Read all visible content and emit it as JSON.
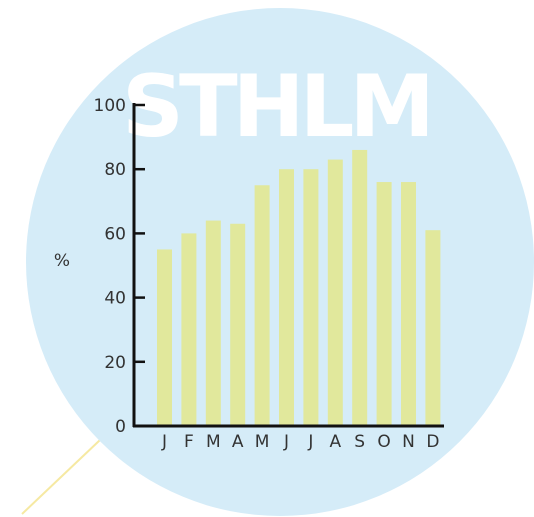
{
  "chart_data": {
    "type": "bar",
    "title": "STHLM",
    "ylabel": "%",
    "xlabel": "",
    "ylim": [
      0,
      100
    ],
    "yticks": [
      0,
      20,
      40,
      60,
      80,
      100
    ],
    "categories": [
      "J",
      "F",
      "M",
      "A",
      "M",
      "J",
      "J",
      "A",
      "S",
      "O",
      "N",
      "D"
    ],
    "values": [
      55,
      60,
      64,
      63,
      75,
      80,
      80,
      83,
      86,
      76,
      76,
      61
    ],
    "grid": false,
    "legend": "none"
  },
  "colors": {
    "circle": "#d5ecf8",
    "bar": "#e1e89c",
    "axis": "#111111",
    "title": "#ffffff",
    "pointer_line": "#f6e9a2"
  }
}
